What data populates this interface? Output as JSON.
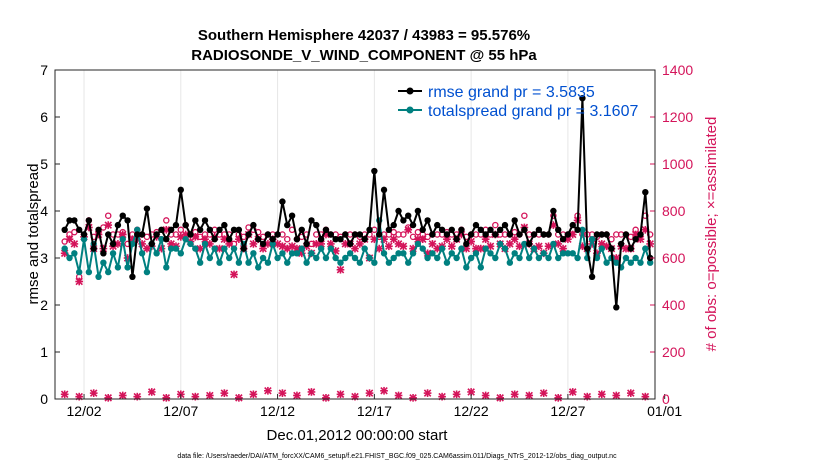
{
  "chart_data": {
    "type": "line",
    "title_line1": "Southern Hemisphere 42037 / 43983 = 95.576%",
    "title_line2": "RADIOSONDE_V_WIND_COMPONENT @ 55 hPa",
    "xlabel": "Dec.01,2012 00:00:00 start",
    "ylabel_left": "rmse and totalspread",
    "ylabel_right": "# of obs: o=possible; ×=assimilated",
    "footer": "data file: /Users/raeder/DAI/ATM_forcXX/CAM6_setup/f.e21.FHIST_BGC.f09_025.CAM6assim.011/Diags_NTrS_2012-12/obs_diag_output.nc",
    "xlim": [
      0.5,
      31.5
    ],
    "ylim_left": [
      0,
      7
    ],
    "ylim_right": [
      0,
      1400
    ],
    "yticks_left": [
      "0",
      "1",
      "2",
      "3",
      "4",
      "5",
      "6",
      "7"
    ],
    "yticks_right": [
      "0",
      "200",
      "400",
      "600",
      "800",
      "1000",
      "1200",
      "1400"
    ],
    "xtick_values": [
      2,
      7,
      12,
      17,
      22,
      27,
      32
    ],
    "xtick_labels": [
      "12/02",
      "12/07",
      "12/12",
      "12/17",
      "12/22",
      "12/27",
      "01/01"
    ],
    "legend": [
      {
        "name": "rmse grand pr = 3.5835",
        "color": "#000000"
      },
      {
        "name": "totalspread grand pr = 3.1607",
        "color": "#008080"
      }
    ],
    "colors": {
      "rmse": "#000000",
      "spread": "#008080",
      "obs": "#d4145a",
      "legend_text": "#0050d0",
      "axis": "#262626"
    },
    "series": [
      {
        "name": "rmse",
        "x": [
          1.0,
          1.25,
          1.5,
          1.75,
          2.0,
          2.25,
          2.5,
          2.75,
          3.0,
          3.25,
          3.5,
          3.75,
          4.0,
          4.25,
          4.5,
          4.75,
          5.0,
          5.25,
          5.5,
          5.75,
          6.0,
          6.25,
          6.5,
          6.75,
          7.0,
          7.25,
          7.5,
          7.75,
          8.0,
          8.25,
          8.5,
          8.75,
          9.0,
          9.25,
          9.5,
          9.75,
          10.0,
          10.25,
          10.5,
          10.75,
          11.0,
          11.25,
          11.5,
          11.75,
          12.0,
          12.25,
          12.5,
          12.75,
          13.0,
          13.25,
          13.5,
          13.75,
          14.0,
          14.25,
          14.5,
          14.75,
          15.0,
          15.25,
          15.5,
          15.75,
          16.0,
          16.25,
          16.5,
          16.75,
          17.0,
          17.25,
          17.5,
          17.75,
          18.0,
          18.25,
          18.5,
          18.75,
          19.0,
          19.25,
          19.5,
          19.75,
          20.0,
          20.25,
          20.5,
          20.75,
          21.0,
          21.25,
          21.5,
          21.75,
          22.0,
          22.25,
          22.5,
          22.75,
          23.0,
          23.25,
          23.5,
          23.75,
          24.0,
          24.25,
          24.5,
          24.75,
          25.0,
          25.25,
          25.5,
          25.75,
          26.0,
          26.25,
          26.5,
          26.75,
          27.0,
          27.25,
          27.5,
          27.75,
          28.0,
          28.25,
          28.5,
          28.75,
          29.0,
          29.25,
          29.5,
          29.75,
          30.0,
          30.25,
          30.5,
          30.75,
          31.0,
          31.25
        ],
        "values": [
          3.6,
          3.8,
          3.8,
          3.6,
          3.5,
          3.8,
          3.2,
          3.6,
          3.1,
          3.5,
          3.3,
          3.7,
          3.9,
          3.8,
          2.6,
          3.5,
          3.5,
          4.05,
          3.3,
          3.5,
          3.6,
          3.4,
          3.6,
          3.7,
          4.45,
          3.7,
          3.5,
          3.8,
          3.6,
          3.8,
          3.6,
          3.4,
          3.6,
          3.7,
          3.4,
          3.6,
          3.6,
          3.2,
          3.5,
          3.7,
          3.4,
          3.3,
          3.5,
          3.4,
          3.5,
          4.2,
          3.7,
          3.9,
          3.4,
          3.6,
          3.3,
          3.8,
          3.7,
          3.4,
          3.6,
          3.5,
          3.4,
          3.4,
          3.5,
          3.3,
          3.5,
          3.5,
          3.4,
          3.6,
          4.85,
          3.5,
          4.45,
          3.6,
          3.7,
          4.0,
          3.8,
          3.9,
          3.7,
          4.0,
          3.6,
          3.8,
          3.5,
          3.7,
          3.6,
          3.5,
          3.6,
          3.4,
          3.6,
          3.3,
          3.5,
          3.7,
          3.6,
          3.5,
          3.6,
          3.5,
          3.6,
          3.7,
          3.5,
          3.8,
          3.5,
          3.6,
          3.3,
          3.5,
          3.6,
          3.5,
          3.5,
          4.0,
          3.6,
          3.4,
          3.5,
          3.7,
          3.6,
          6.4,
          3.2,
          2.6,
          3.5,
          3.5,
          3.5,
          3.2,
          1.95,
          3.3,
          3.5,
          3.2,
          3.4,
          3.5,
          4.4,
          3.0
        ]
      },
      {
        "name": "totalspread",
        "x": [
          1.0,
          1.25,
          1.5,
          1.75,
          2.0,
          2.25,
          2.5,
          2.75,
          3.0,
          3.25,
          3.5,
          3.75,
          4.0,
          4.25,
          4.5,
          4.75,
          5.0,
          5.25,
          5.5,
          5.75,
          6.0,
          6.25,
          6.5,
          6.75,
          7.0,
          7.25,
          7.5,
          7.75,
          8.0,
          8.25,
          8.5,
          8.75,
          9.0,
          9.25,
          9.5,
          9.75,
          10.0,
          10.25,
          10.5,
          10.75,
          11.0,
          11.25,
          11.5,
          11.75,
          12.0,
          12.25,
          12.5,
          12.75,
          13.0,
          13.25,
          13.5,
          13.75,
          14.0,
          14.25,
          14.5,
          14.75,
          15.0,
          15.25,
          15.5,
          15.75,
          16.0,
          16.25,
          16.5,
          16.75,
          17.0,
          17.25,
          17.5,
          17.75,
          18.0,
          18.25,
          18.5,
          18.75,
          19.0,
          19.25,
          19.5,
          19.75,
          20.0,
          20.25,
          20.5,
          20.75,
          21.0,
          21.25,
          21.5,
          21.75,
          22.0,
          22.25,
          22.5,
          22.75,
          23.0,
          23.25,
          23.5,
          23.75,
          24.0,
          24.25,
          24.5,
          24.75,
          25.0,
          25.25,
          25.5,
          25.75,
          26.0,
          26.25,
          26.5,
          26.75,
          27.0,
          27.25,
          27.5,
          27.75,
          28.0,
          28.25,
          28.5,
          28.75,
          29.0,
          29.25,
          29.5,
          29.75,
          30.0,
          30.25,
          30.5,
          30.75,
          31.0,
          31.25
        ],
        "values": [
          3.2,
          3.0,
          3.1,
          2.7,
          3.4,
          2.7,
          3.3,
          2.6,
          2.9,
          2.7,
          3.1,
          2.8,
          3.4,
          2.8,
          3.3,
          3.6,
          3.1,
          2.7,
          3.3,
          3.1,
          3.4,
          2.8,
          3.2,
          3.2,
          3.1,
          3.4,
          3.3,
          3.2,
          2.9,
          3.3,
          3.0,
          3.2,
          2.9,
          3.2,
          3.0,
          3.2,
          2.9,
          3.3,
          2.9,
          3.1,
          2.8,
          3.0,
          2.9,
          3.3,
          3.0,
          3.1,
          2.9,
          3.1,
          3.1,
          3.2,
          2.9,
          3.1,
          3.0,
          3.2,
          3.0,
          3.2,
          3.0,
          2.9,
          3.0,
          3.1,
          3.0,
          2.9,
          3.2,
          3.0,
          2.9,
          3.8,
          3.1,
          2.9,
          3.0,
          3.1,
          3.1,
          2.9,
          3.1,
          3.3,
          3.2,
          3.0,
          3.1,
          3.0,
          3.2,
          2.9,
          3.1,
          3.0,
          3.2,
          2.8,
          3.0,
          3.1,
          2.8,
          3.2,
          3.1,
          3.0,
          3.3,
          3.2,
          2.9,
          3.1,
          3.0,
          3.3,
          3.0,
          3.2,
          3.0,
          3.1,
          3.0,
          3.3,
          3.0,
          3.1,
          3.1,
          3.1,
          3.0,
          3.6,
          3.0,
          3.4,
          3.0,
          3.2,
          2.9,
          3.0,
          2.9,
          2.8,
          3.0,
          2.9,
          3.0,
          2.9,
          3.2,
          2.9
        ]
      },
      {
        "name": "obs possible",
        "x": [
          1.0,
          1.25,
          1.5,
          1.75,
          2.0,
          2.25,
          2.5,
          2.75,
          3.0,
          3.25,
          3.5,
          3.75,
          4.0,
          4.25,
          4.5,
          4.75,
          5.0,
          5.25,
          5.5,
          5.75,
          6.0,
          6.25,
          6.5,
          6.75,
          7.0,
          7.25,
          7.5,
          7.75,
          8.0,
          8.25,
          8.5,
          8.75,
          9.0,
          9.25,
          9.5,
          9.75,
          10.0,
          10.25,
          10.5,
          10.75,
          11.0,
          11.25,
          11.5,
          11.75,
          12.0,
          12.25,
          12.5,
          12.75,
          13.0,
          13.25,
          13.5,
          13.75,
          14.0,
          14.25,
          14.5,
          14.75,
          15.0,
          15.25,
          15.5,
          15.75,
          16.0,
          16.25,
          16.5,
          16.75,
          17.0,
          17.25,
          17.5,
          17.75,
          18.0,
          18.25,
          18.5,
          18.75,
          19.0,
          19.25,
          19.5,
          19.75,
          20.0,
          20.25,
          20.5,
          20.75,
          21.0,
          21.25,
          21.5,
          21.75,
          22.0,
          22.25,
          22.5,
          22.75,
          23.0,
          23.25,
          23.5,
          23.75,
          24.0,
          24.25,
          24.5,
          24.75,
          25.0,
          25.25,
          25.5,
          25.75,
          26.0,
          26.25,
          26.5,
          26.75,
          27.0,
          27.25,
          27.5,
          27.75,
          28.0,
          28.25,
          28.5,
          28.75,
          29.0,
          29.25,
          29.5,
          29.75,
          30.0,
          30.25,
          30.5,
          30.75,
          31.0,
          31.25
        ],
        "values": [
          670,
          700,
          710,
          520,
          700,
          760,
          690,
          710,
          730,
          780,
          700,
          700,
          710,
          660,
          700,
          720,
          700,
          690,
          700,
          710,
          680,
          760,
          700,
          700,
          720,
          740,
          700,
          710,
          690,
          700,
          700,
          720,
          700,
          700,
          700,
          660,
          700,
          690,
          730,
          720,
          710,
          690,
          700,
          700,
          700,
          700,
          680,
          720,
          680,
          690,
          700,
          660,
          700,
          700,
          720,
          700,
          700,
          690,
          700,
          700,
          700,
          690,
          700,
          700,
          720,
          690,
          700,
          700,
          710,
          700,
          700,
          730,
          690,
          710,
          700,
          690,
          700,
          700,
          700,
          710,
          700,
          700,
          720,
          690,
          700,
          700,
          700,
          720,
          700,
          740,
          700,
          700,
          700,
          710,
          700,
          780,
          700,
          700,
          700,
          700,
          700,
          780,
          700,
          700,
          700,
          720,
          780,
          700,
          700,
          700,
          690,
          700,
          700,
          680,
          700,
          700,
          700,
          690,
          720,
          700,
          780,
          700
        ]
      },
      {
        "name": "obs assimilated",
        "x": [
          1.0,
          1.25,
          1.5,
          1.75,
          2.0,
          2.25,
          2.5,
          2.75,
          3.0,
          3.25,
          3.5,
          3.75,
          4.0,
          4.25,
          4.5,
          4.75,
          5.0,
          5.25,
          5.5,
          5.75,
          6.0,
          6.25,
          6.5,
          6.75,
          7.0,
          7.25,
          7.5,
          7.75,
          8.0,
          8.25,
          8.5,
          8.75,
          9.0,
          9.25,
          9.5,
          9.75,
          10.0,
          10.25,
          10.5,
          10.75,
          11.0,
          11.25,
          11.5,
          11.75,
          12.0,
          12.25,
          12.5,
          12.75,
          13.0,
          13.25,
          13.5,
          13.75,
          14.0,
          14.25,
          14.5,
          14.75,
          15.0,
          15.25,
          15.5,
          15.75,
          16.0,
          16.25,
          16.5,
          16.75,
          17.0,
          17.25,
          17.5,
          17.75,
          18.0,
          18.25,
          18.5,
          18.75,
          19.0,
          19.25,
          19.5,
          19.75,
          20.0,
          20.25,
          20.5,
          20.75,
          21.0,
          21.25,
          21.5,
          21.75,
          22.0,
          22.25,
          22.5,
          22.75,
          23.0,
          23.25,
          23.5,
          23.75,
          24.0,
          24.25,
          24.5,
          24.75,
          25.0,
          25.25,
          25.5,
          25.75,
          26.0,
          26.25,
          26.5,
          26.75,
          27.0,
          27.25,
          27.5,
          27.75,
          28.0,
          28.25,
          28.5,
          28.75,
          29.0,
          29.25,
          29.5,
          29.75,
          30.0,
          30.25,
          30.5,
          30.75,
          31.0,
          31.25
        ],
        "values": [
          620,
          680,
          660,
          500,
          690,
          730,
          640,
          700,
          640,
          740,
          650,
          660,
          700,
          600,
          680,
          680,
          660,
          640,
          650,
          690,
          640,
          720,
          660,
          650,
          690,
          700,
          670,
          690,
          640,
          680,
          660,
          690,
          640,
          680,
          660,
          530,
          680,
          640,
          700,
          660,
          680,
          640,
          660,
          680,
          660,
          650,
          640,
          650,
          640,
          620,
          650,
          620,
          660,
          660,
          700,
          660,
          630,
          550,
          660,
          660,
          640,
          660,
          680,
          600,
          680,
          640,
          680,
          650,
          680,
          660,
          650,
          720,
          640,
          680,
          680,
          620,
          660,
          640,
          650,
          680,
          650,
          680,
          700,
          640,
          670,
          640,
          640,
          680,
          650,
          700,
          660,
          640,
          660,
          680,
          650,
          730,
          660,
          640,
          650,
          620,
          650,
          740,
          660,
          640,
          680,
          700,
          760,
          650,
          640,
          660,
          620,
          660,
          650,
          640,
          600,
          650,
          640,
          640,
          700,
          680,
          720,
          660
        ]
      },
      {
        "name": "obs bottom",
        "x": [
          1.0,
          1.75,
          2.5,
          3.25,
          4.0,
          4.75,
          5.5,
          6.25,
          7.0,
          7.75,
          8.5,
          9.25,
          10.0,
          10.75,
          11.5,
          12.25,
          13.0,
          13.75,
          14.5,
          15.25,
          16.0,
          16.75,
          17.5,
          18.25,
          19.0,
          19.75,
          20.5,
          21.25,
          22.0,
          22.75,
          23.5,
          24.25,
          25.0,
          25.75,
          26.5,
          27.25,
          28.0,
          28.75,
          29.5,
          30.25,
          31.0
        ],
        "values": [
          20,
          10,
          25,
          5,
          15,
          10,
          30,
          5,
          20,
          10,
          15,
          25,
          5,
          20,
          35,
          25,
          15,
          30,
          5,
          20,
          10,
          25,
          35,
          15,
          5,
          25,
          10,
          20,
          30,
          15,
          5,
          20,
          15,
          25,
          5,
          30,
          10,
          20,
          15,
          25,
          10
        ]
      }
    ]
  }
}
